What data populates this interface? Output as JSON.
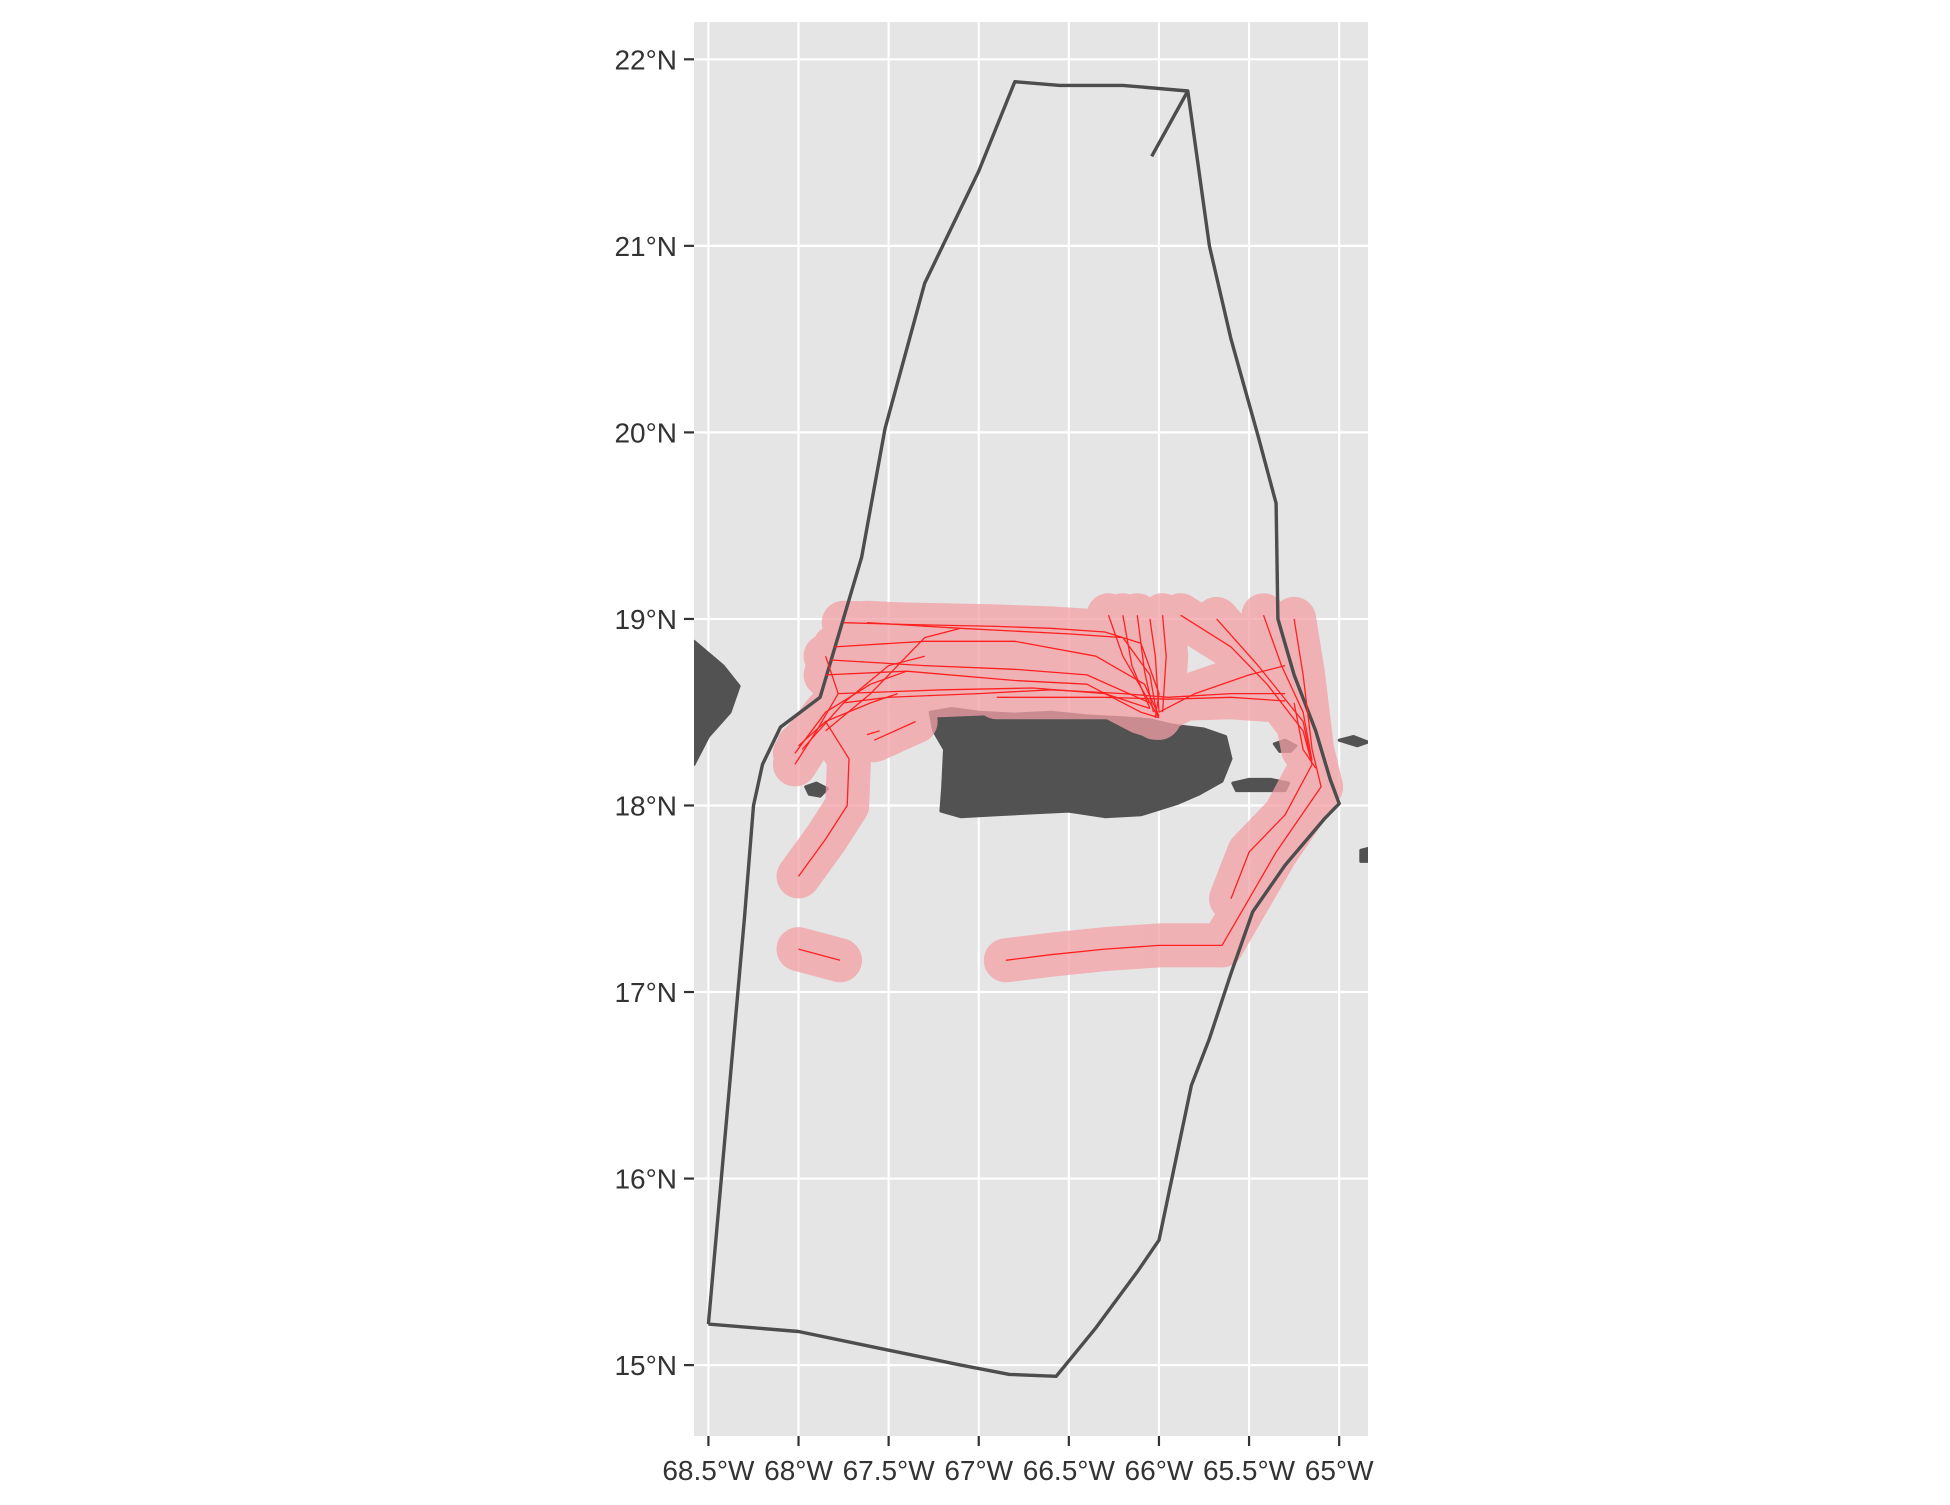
{
  "chart_data": {
    "type": "map",
    "xlim": [
      -68.58,
      -64.84
    ],
    "ylim": [
      14.62,
      22.2
    ],
    "grid": true,
    "x_ticks": [
      {
        "value": -68.5,
        "label": "68.5°W"
      },
      {
        "value": -68.0,
        "label": "68°W"
      },
      {
        "value": -67.5,
        "label": "67.5°W"
      },
      {
        "value": -67.0,
        "label": "67°W"
      },
      {
        "value": -66.5,
        "label": "66.5°W"
      },
      {
        "value": -66.0,
        "label": "66°W"
      },
      {
        "value": -65.5,
        "label": "65.5°W"
      },
      {
        "value": -65.0,
        "label": "65°W"
      }
    ],
    "y_ticks": [
      {
        "value": 15,
        "label": "15°N"
      },
      {
        "value": 16,
        "label": "16°N"
      },
      {
        "value": 17,
        "label": "17°N"
      },
      {
        "value": 18,
        "label": "18°N"
      },
      {
        "value": 19,
        "label": "19°N"
      },
      {
        "value": 20,
        "label": "20°N"
      },
      {
        "value": 21,
        "label": "21°N"
      },
      {
        "value": 22,
        "label": "22°N"
      }
    ],
    "colors": {
      "panel": "#e5e5e5",
      "gridline": "#ffffff",
      "land": "#525252",
      "boundary": "#4d4d4d",
      "track": "#ff2020",
      "buffer": "#f4a0a6",
      "axis_text": "#333333"
    },
    "boundary": [
      [
        -68.5,
        15.22
      ],
      [
        -68.0,
        15.18
      ],
      [
        -67.5,
        15.08
      ],
      [
        -67.1,
        15.0
      ],
      [
        -66.83,
        14.95
      ],
      [
        -66.57,
        14.94
      ],
      [
        -66.35,
        15.2
      ],
      [
        -66.12,
        15.5
      ],
      [
        -66.0,
        15.67
      ],
      [
        -65.82,
        16.5
      ],
      [
        -65.72,
        16.75
      ],
      [
        -65.6,
        17.1
      ],
      [
        -65.48,
        17.43
      ],
      [
        -65.3,
        17.68
      ],
      [
        -65.08,
        17.93
      ],
      [
        -65.0,
        18.01
      ],
      [
        -65.05,
        18.14
      ],
      [
        -65.13,
        18.4
      ],
      [
        -65.25,
        18.7
      ],
      [
        -65.34,
        19.0
      ],
      [
        -65.35,
        19.62
      ],
      [
        -65.45,
        19.98
      ],
      [
        -65.6,
        20.5
      ],
      [
        -65.72,
        21.0
      ],
      [
        -65.84,
        21.83
      ],
      [
        -66.2,
        21.86
      ],
      [
        -66.55,
        21.86
      ],
      [
        -66.8,
        21.88
      ],
      [
        -67.0,
        21.4
      ],
      [
        -67.3,
        20.8
      ],
      [
        -67.52,
        20.02
      ],
      [
        -67.65,
        19.33
      ],
      [
        -67.88,
        18.58
      ],
      [
        -68.1,
        18.42
      ],
      [
        -68.2,
        18.22
      ],
      [
        -68.25,
        18.0
      ],
      [
        -68.3,
        17.4
      ],
      [
        -68.5,
        15.22
      ]
    ],
    "boundary_spur": [
      [
        -65.84,
        21.83
      ],
      [
        -66.04,
        21.48
      ]
    ],
    "land": [
      {
        "name": "Puerto Rico",
        "polygon": [
          [
            -67.27,
            18.5
          ],
          [
            -67.15,
            18.52
          ],
          [
            -67.0,
            18.5
          ],
          [
            -66.8,
            18.49
          ],
          [
            -66.6,
            18.5
          ],
          [
            -66.4,
            18.48
          ],
          [
            -66.2,
            18.47
          ],
          [
            -66.05,
            18.46
          ],
          [
            -65.92,
            18.43
          ],
          [
            -65.75,
            18.41
          ],
          [
            -65.63,
            18.37
          ],
          [
            -65.6,
            18.25
          ],
          [
            -65.65,
            18.13
          ],
          [
            -65.78,
            18.06
          ],
          [
            -65.9,
            18.01
          ],
          [
            -66.1,
            17.95
          ],
          [
            -66.3,
            17.94
          ],
          [
            -66.5,
            17.97
          ],
          [
            -66.7,
            17.96
          ],
          [
            -66.9,
            17.95
          ],
          [
            -67.1,
            17.94
          ],
          [
            -67.21,
            17.97
          ],
          [
            -67.2,
            18.1
          ],
          [
            -67.19,
            18.3
          ],
          [
            -67.25,
            18.4
          ]
        ]
      },
      {
        "name": "Vieques",
        "polygon": [
          [
            -65.59,
            18.12
          ],
          [
            -65.5,
            18.14
          ],
          [
            -65.38,
            18.14
          ],
          [
            -65.28,
            18.12
          ],
          [
            -65.3,
            18.08
          ],
          [
            -65.42,
            18.08
          ],
          [
            -65.57,
            18.08
          ]
        ]
      },
      {
        "name": "Culebra",
        "polygon": [
          [
            -65.36,
            18.33
          ],
          [
            -65.3,
            18.35
          ],
          [
            -65.24,
            18.32
          ],
          [
            -65.27,
            18.29
          ],
          [
            -65.33,
            18.29
          ]
        ]
      },
      {
        "name": "Mona",
        "polygon": [
          [
            -67.96,
            18.1
          ],
          [
            -67.9,
            18.12
          ],
          [
            -67.84,
            18.09
          ],
          [
            -67.88,
            18.05
          ],
          [
            -67.94,
            18.06
          ]
        ]
      },
      {
        "name": "Hispaniola",
        "polygon": [
          [
            -68.58,
            18.88
          ],
          [
            -68.42,
            18.75
          ],
          [
            -68.33,
            18.64
          ],
          [
            -68.38,
            18.5
          ],
          [
            -68.5,
            18.37
          ],
          [
            -68.58,
            18.22
          ]
        ]
      },
      {
        "name": "Virgin Islands",
        "polygon": [
          [
            -65.0,
            18.35
          ],
          [
            -64.92,
            18.37
          ],
          [
            -64.84,
            18.34
          ],
          [
            -64.9,
            18.32
          ]
        ]
      },
      {
        "name": "St Croix",
        "polygon": [
          [
            -64.88,
            17.76
          ],
          [
            -64.84,
            17.77
          ],
          [
            -64.84,
            17.7
          ],
          [
            -64.88,
            17.7
          ]
        ]
      }
    ],
    "tracks": [
      [
        [
          -67.75,
          18.98
        ],
        [
          -67.4,
          18.97
        ],
        [
          -66.9,
          18.96
        ],
        [
          -66.6,
          18.95
        ],
        [
          -66.3,
          18.93
        ],
        [
          -66.1,
          18.87
        ],
        [
          -66.0,
          18.6
        ],
        [
          -66.02,
          18.47
        ]
      ],
      [
        [
          -67.62,
          18.98
        ],
        [
          -67.1,
          18.95
        ],
        [
          -66.5,
          18.92
        ],
        [
          -66.2,
          18.9
        ],
        [
          -66.05,
          18.7
        ],
        [
          -66.01,
          18.48
        ]
      ],
      [
        [
          -67.8,
          18.85
        ],
        [
          -67.3,
          18.88
        ],
        [
          -66.8,
          18.88
        ],
        [
          -66.35,
          18.8
        ],
        [
          -66.08,
          18.65
        ],
        [
          -66.0,
          18.48
        ]
      ],
      [
        [
          -67.82,
          18.78
        ],
        [
          -67.3,
          18.75
        ],
        [
          -66.8,
          18.73
        ],
        [
          -66.4,
          18.7
        ],
        [
          -66.05,
          18.55
        ],
        [
          -66.0,
          18.47
        ]
      ],
      [
        [
          -67.78,
          18.6
        ],
        [
          -67.2,
          18.62
        ],
        [
          -66.7,
          18.63
        ],
        [
          -66.3,
          18.6
        ],
        [
          -66.05,
          18.52
        ]
      ],
      [
        [
          -67.85,
          18.7
        ],
        [
          -67.4,
          18.72
        ],
        [
          -66.8,
          18.67
        ],
        [
          -66.4,
          18.65
        ],
        [
          -66.1,
          18.5
        ],
        [
          -66.0,
          18.47
        ]
      ],
      [
        [
          -67.75,
          18.55
        ],
        [
          -67.5,
          18.58
        ],
        [
          -67.0,
          18.6
        ],
        [
          -66.6,
          18.62
        ],
        [
          -66.2,
          18.6
        ],
        [
          -65.95,
          18.58
        ],
        [
          -65.6,
          18.6
        ],
        [
          -65.3,
          18.6
        ]
      ],
      [
        [
          -66.9,
          18.58
        ],
        [
          -66.3,
          18.58
        ],
        [
          -65.95,
          18.57
        ],
        [
          -65.6,
          18.58
        ],
        [
          -65.3,
          18.56
        ]
      ],
      [
        [
          -66.2,
          19.02
        ],
        [
          -66.15,
          18.75
        ],
        [
          -66.05,
          18.52
        ]
      ],
      [
        [
          -66.12,
          19.02
        ],
        [
          -66.08,
          18.72
        ],
        [
          -66.03,
          18.5
        ]
      ],
      [
        [
          -66.05,
          19.0
        ],
        [
          -66.02,
          18.8
        ],
        [
          -66.0,
          18.5
        ]
      ],
      [
        [
          -66.28,
          19.02
        ],
        [
          -66.2,
          18.8
        ],
        [
          -66.05,
          18.55
        ]
      ],
      [
        [
          -65.98,
          19.02
        ],
        [
          -65.96,
          18.8
        ],
        [
          -65.98,
          18.5
        ]
      ],
      [
        [
          -66.0,
          18.5
        ],
        [
          -65.8,
          18.6
        ],
        [
          -65.5,
          18.7
        ],
        [
          -65.3,
          18.75
        ]
      ],
      [
        [
          -65.88,
          19.02
        ],
        [
          -65.6,
          18.85
        ],
        [
          -65.4,
          18.65
        ],
        [
          -65.2,
          18.4
        ],
        [
          -65.15,
          18.22
        ]
      ],
      [
        [
          -65.68,
          19.0
        ],
        [
          -65.45,
          18.75
        ],
        [
          -65.2,
          18.45
        ],
        [
          -65.15,
          18.22
        ]
      ],
      [
        [
          -65.42,
          19.02
        ],
        [
          -65.32,
          18.75
        ],
        [
          -65.2,
          18.5
        ],
        [
          -65.15,
          18.24
        ]
      ],
      [
        [
          -65.25,
          19.0
        ],
        [
          -65.2,
          18.7
        ],
        [
          -65.15,
          18.3
        ],
        [
          -65.1,
          18.1
        ],
        [
          -65.35,
          17.75
        ],
        [
          -65.5,
          17.5
        ],
        [
          -65.65,
          17.25
        ]
      ],
      [
        [
          -65.15,
          18.22
        ],
        [
          -65.3,
          17.95
        ],
        [
          -65.5,
          17.75
        ],
        [
          -65.6,
          17.5
        ]
      ],
      [
        [
          -65.25,
          18.55
        ],
        [
          -65.2,
          18.3
        ],
        [
          -65.13,
          18.2
        ]
      ],
      [
        [
          -65.65,
          17.25
        ],
        [
          -66.0,
          17.25
        ],
        [
          -66.3,
          17.23
        ],
        [
          -66.6,
          17.2
        ],
        [
          -66.85,
          17.17
        ]
      ],
      [
        [
          -68.0,
          17.23
        ],
        [
          -67.77,
          17.17
        ]
      ],
      [
        [
          -68.0,
          17.62
        ],
        [
          -67.85,
          17.82
        ],
        [
          -67.73,
          18.0
        ],
        [
          -67.72,
          18.25
        ],
        [
          -67.85,
          18.45
        ]
      ],
      [
        [
          -68.02,
          18.22
        ],
        [
          -67.9,
          18.4
        ],
        [
          -67.78,
          18.6
        ],
        [
          -67.85,
          18.8
        ]
      ],
      [
        [
          -68.02,
          18.28
        ],
        [
          -67.85,
          18.5
        ],
        [
          -67.6,
          18.65
        ],
        [
          -67.4,
          18.72
        ]
      ],
      [
        [
          -68.0,
          18.32
        ],
        [
          -67.85,
          18.45
        ],
        [
          -67.6,
          18.55
        ],
        [
          -67.45,
          18.6
        ]
      ],
      [
        [
          -67.98,
          18.3
        ],
        [
          -67.75,
          18.55
        ],
        [
          -67.5,
          18.75
        ],
        [
          -67.3,
          18.8
        ]
      ],
      [
        [
          -67.85,
          18.4
        ],
        [
          -67.6,
          18.6
        ],
        [
          -67.3,
          18.9
        ],
        [
          -67.1,
          18.95
        ]
      ],
      [
        [
          -67.58,
          18.35
        ],
        [
          -67.35,
          18.45
        ]
      ],
      [
        [
          -67.62,
          18.38
        ],
        [
          -67.55,
          18.4
        ]
      ]
    ]
  }
}
